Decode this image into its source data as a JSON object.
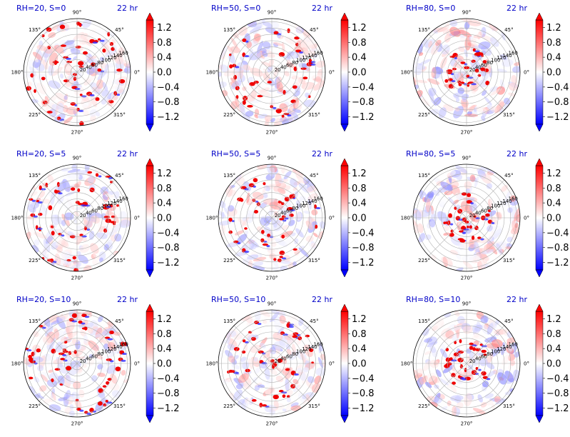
{
  "figure": {
    "time_label": "22 hr",
    "angle_ticks": [
      "0°",
      "45°",
      "90°",
      "135°",
      "180°",
      "225°",
      "270°",
      "315°"
    ],
    "angle_tick_degrees": [
      0,
      45,
      90,
      135,
      180,
      225,
      270,
      315
    ],
    "radial_ticks": [
      "20",
      "40",
      "60",
      "80",
      "100",
      "120",
      "140",
      "160"
    ],
    "radial_max": 170,
    "radial_label_angle_deg": 22.5,
    "colorbar": {
      "ticks": [
        "1.2",
        "0.8",
        "0.4",
        "0.0",
        "−0.4",
        "−0.8",
        "−1.2"
      ],
      "tick_values": [
        1.2,
        0.8,
        0.4,
        0.0,
        -0.4,
        -0.8,
        -1.2
      ],
      "range": [
        -1.4,
        1.4
      ],
      "colormap": "bwr",
      "extend": "both",
      "colors": {
        "negative": "#0000ff",
        "zero": "#ffffff",
        "positive": "#ff0000"
      }
    }
  },
  "chart_data": [
    {
      "type": "heatmap",
      "projection": "polar",
      "title": "RH=20, S=0",
      "time": "22 hr",
      "rh": 20,
      "s": 0
    },
    {
      "type": "heatmap",
      "projection": "polar",
      "title": "RH=50, S=0",
      "time": "22 hr",
      "rh": 50,
      "s": 0
    },
    {
      "type": "heatmap",
      "projection": "polar",
      "title": "RH=80, S=0",
      "time": "22 hr",
      "rh": 80,
      "s": 0
    },
    {
      "type": "heatmap",
      "projection": "polar",
      "title": "RH=20, S=5",
      "time": "22 hr",
      "rh": 20,
      "s": 5
    },
    {
      "type": "heatmap",
      "projection": "polar",
      "title": "RH=50, S=5",
      "time": "22 hr",
      "rh": 50,
      "s": 5
    },
    {
      "type": "heatmap",
      "projection": "polar",
      "title": "RH=80, S=5",
      "time": "22 hr",
      "rh": 80,
      "s": 5
    },
    {
      "type": "heatmap",
      "projection": "polar",
      "title": "RH=20, S=10",
      "time": "22 hr",
      "rh": 20,
      "s": 10
    },
    {
      "type": "heatmap",
      "projection": "polar",
      "title": "RH=50, S=10",
      "time": "22 hr",
      "rh": 50,
      "s": 10
    },
    {
      "type": "heatmap",
      "projection": "polar",
      "title": "RH=80, S=10",
      "time": "22 hr",
      "rh": 80,
      "s": 10
    }
  ]
}
